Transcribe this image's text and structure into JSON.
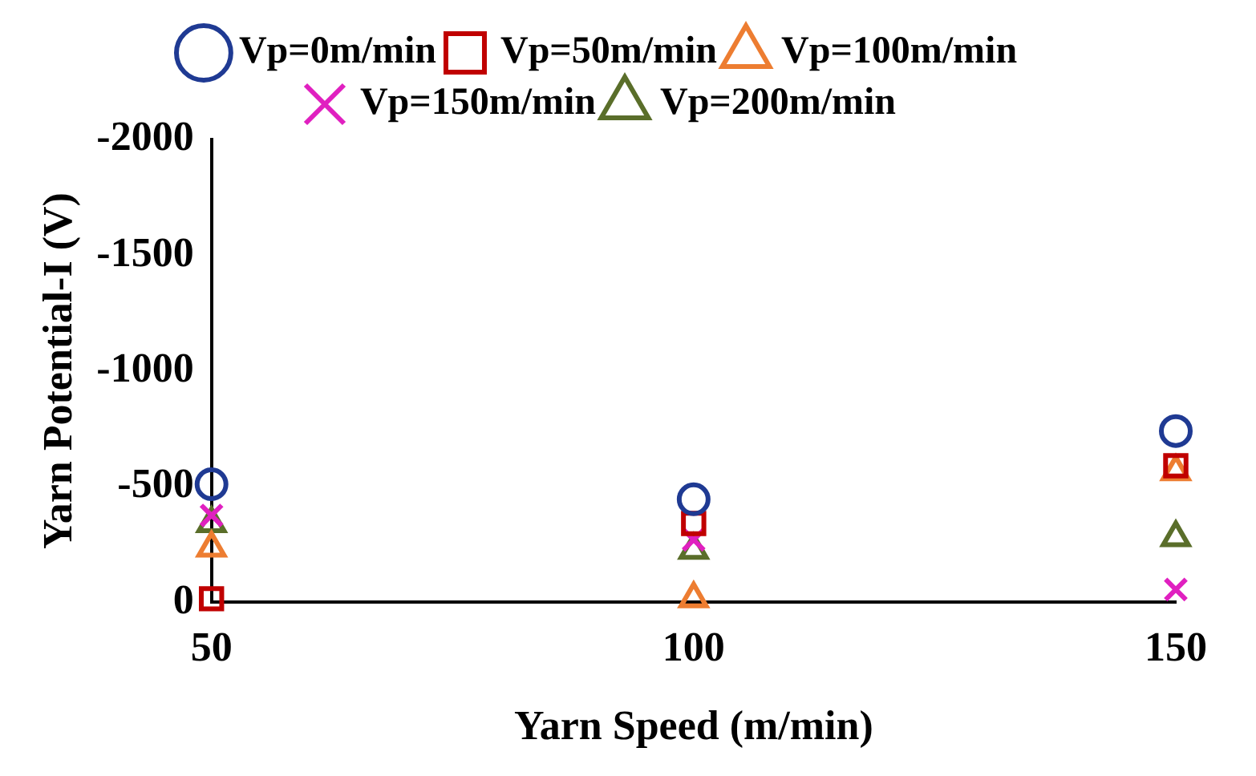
{
  "chart_data": {
    "type": "scatter",
    "xlabel": "Yarn Speed (m/min)",
    "ylabel": "Yarn Potential-I (V)",
    "x": [
      50,
      100,
      150
    ],
    "xlim": [
      50,
      150
    ],
    "xticks": [
      50,
      100,
      150
    ],
    "ylim": [
      0,
      -2000
    ],
    "yticks": [
      0,
      -500,
      -1000,
      -1500,
      -2000
    ],
    "grid": false,
    "legend": "top",
    "series": [
      {
        "name": "Vp=0m/min",
        "color": "#1f3a93",
        "marker": "circle",
        "values": [
          -510,
          -445,
          -740
        ]
      },
      {
        "name": "Vp=50m/min",
        "color": "#c00000",
        "marker": "square",
        "values": [
          -15,
          -340,
          -590
        ]
      },
      {
        "name": "Vp=100m/min",
        "color": "#ed7d31",
        "marker": "triangle",
        "values": [
          -235,
          -15,
          -565
        ]
      },
      {
        "name": "Vp=150m/min",
        "color": "#e020c0",
        "marker": "cross",
        "values": [
          -375,
          -270,
          -55
        ]
      },
      {
        "name": "Vp=200m/min",
        "color": "#5a6e2a",
        "marker": "triangle",
        "values": [
          -340,
          -225,
          -280
        ]
      }
    ]
  }
}
